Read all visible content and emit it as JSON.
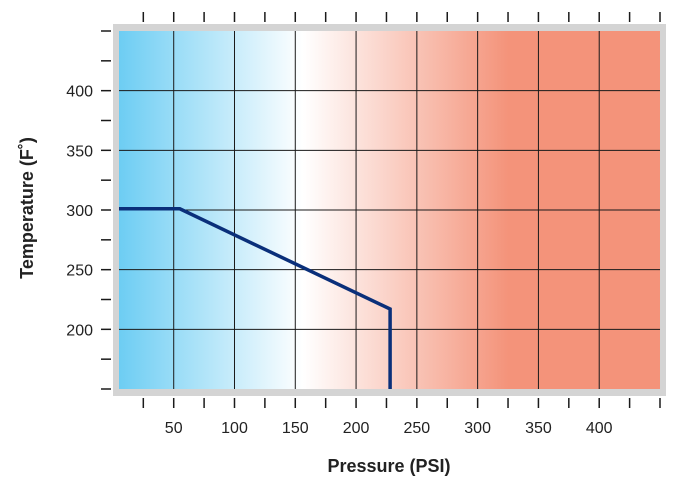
{
  "chart_data": {
    "type": "line",
    "xlabel": "Pressure (PSI)",
    "ylabel": "Temperature (F˚)",
    "xlim": [
      5,
      450
    ],
    "ylim": [
      150,
      450
    ],
    "xticks": [
      50,
      100,
      150,
      200,
      250,
      300,
      350,
      400
    ],
    "yticks": [
      200,
      250,
      300,
      350,
      400
    ],
    "grid": true,
    "background_gradient": [
      "#6dcdf3",
      "#ffffff",
      "#f4937a"
    ],
    "line_color": "#0a2f7a",
    "series": [
      {
        "x": [
          5,
          55,
          228,
          228
        ],
        "y": [
          301,
          301,
          217,
          150
        ]
      }
    ]
  }
}
